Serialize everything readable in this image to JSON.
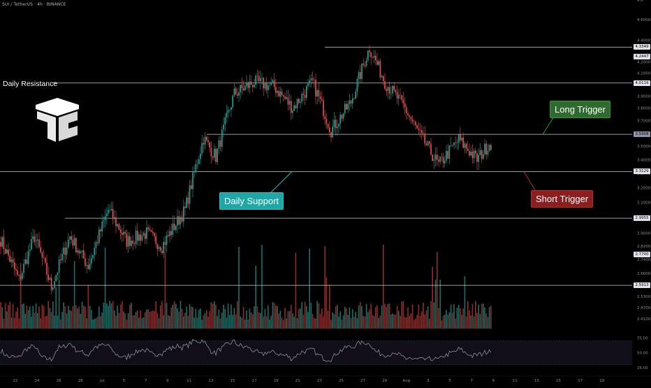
{
  "header": {
    "symbol": "SUI / TetherUS · 4h · BINANCE"
  },
  "chart_data": [
    {
      "type": "candlestick",
      "title": "SUI / TetherUS · 4h · BINANCE",
      "ylim": [
        2.36,
        4.8
      ],
      "scale": "log",
      "price_ticks": [
        "4.8",
        "4.6000",
        "4.4000",
        "4.2000",
        "4.1000",
        "3.9000",
        "3.8000",
        "3.7000",
        "3.6000",
        "3.5000",
        "3.4000",
        "3.3000",
        "3.2000",
        "3.1000",
        "3.0000",
        "2.9000",
        "2.8200",
        "2.7400",
        "2.6600",
        "2.6000",
        "2.5300",
        "2.4700",
        "2.4100"
      ],
      "x_ticks": [
        "22",
        "24",
        "26",
        "28",
        "Jul",
        "5",
        "7",
        "9",
        "11",
        "13",
        "15",
        "17",
        "19",
        "21",
        "23",
        "25",
        "27",
        "29",
        "Aug",
        "3",
        "5",
        "7",
        "9",
        "11",
        "13",
        "15",
        "17",
        "19"
      ],
      "levels": [
        {
          "price": 4.3349,
          "label": "4.3349"
        },
        {
          "price": 4.2447,
          "label": "4.2447"
        },
        {
          "price": 4.0116,
          "label": "4.0116",
          "name": "Daily Resistance"
        },
        {
          "price": 3.5908,
          "label": "3.5908"
        },
        {
          "price": 3.3129,
          "label": "3.3129",
          "name": "Daily Support"
        },
        {
          "price": 2.9955,
          "label": "2.9955"
        },
        {
          "price": 2.77,
          "label": "2.7700"
        },
        {
          "price": 2.5913,
          "label": "2.5913"
        }
      ],
      "anchors": [
        [
          0,
          2.86
        ],
        [
          12,
          2.62
        ],
        [
          22,
          2.88
        ],
        [
          33,
          2.58
        ],
        [
          45,
          2.88
        ],
        [
          57,
          2.7
        ],
        [
          70,
          3.05
        ],
        [
          82,
          2.85
        ],
        [
          95,
          2.9
        ],
        [
          105,
          2.82
        ],
        [
          120,
          3.05
        ],
        [
          132,
          3.56
        ],
        [
          140,
          3.42
        ],
        [
          152,
          3.92
        ],
        [
          165,
          4.02
        ],
        [
          178,
          3.98
        ],
        [
          190,
          3.8
        ],
        [
          203,
          4.02
        ],
        [
          215,
          3.62
        ],
        [
          228,
          3.85
        ],
        [
          240,
          4.33
        ],
        [
          250,
          4.02
        ],
        [
          262,
          3.82
        ],
        [
          272,
          3.6
        ],
        [
          285,
          3.36
        ],
        [
          298,
          3.55
        ],
        [
          310,
          3.4
        ],
        [
          318,
          3.52
        ]
      ],
      "annotations": {
        "resistance": "Daily Resistance",
        "support": "Daily Support",
        "long": "Long Trigger",
        "short": "Short Trigger"
      },
      "colors": {
        "up": "#26a69a",
        "down": "#ef5350",
        "level": "#c8ccd4",
        "level_dim": "#8f96a8"
      }
    },
    {
      "type": "volume",
      "series": [
        {
          "name": "",
          "values": []
        }
      ],
      "up_color": "#1f6f68",
      "down_color": "#8f2c2c"
    },
    {
      "type": "line",
      "title": "",
      "ylim": [
        20,
        85
      ],
      "y_ticks": [
        "75.00",
        "50.00",
        "25.00"
      ],
      "bands": [
        70,
        30
      ],
      "line_color": "#8a8f9c"
    }
  ]
}
